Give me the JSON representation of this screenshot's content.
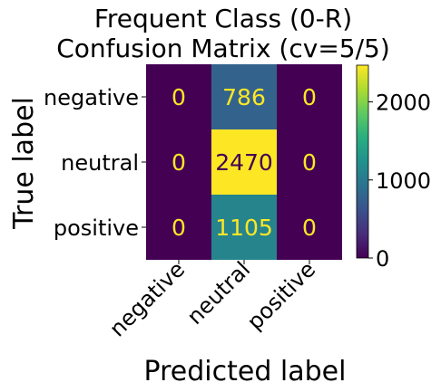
{
  "chart_data": {
    "type": "heatmap",
    "title": [
      "Frequent Class (0-R)",
      "Confusion Matrix (cv=5/5)"
    ],
    "xlabel": "Predicted label",
    "ylabel": "True label",
    "x_categories": [
      "negative",
      "neutral",
      "positive"
    ],
    "y_categories": [
      "negative",
      "neutral",
      "positive"
    ],
    "values": [
      [
        0,
        786,
        0
      ],
      [
        0,
        2470,
        0
      ],
      [
        0,
        1105,
        0
      ]
    ],
    "colormap": "viridis",
    "colorbar": {
      "range": [
        0,
        2470
      ],
      "ticks": [
        0,
        1000,
        2000
      ],
      "tick_labels": [
        "0",
        "1000",
        "2000"
      ]
    },
    "label_colors": {
      "on_dark": "#fde725",
      "on_light": "#440154"
    }
  }
}
